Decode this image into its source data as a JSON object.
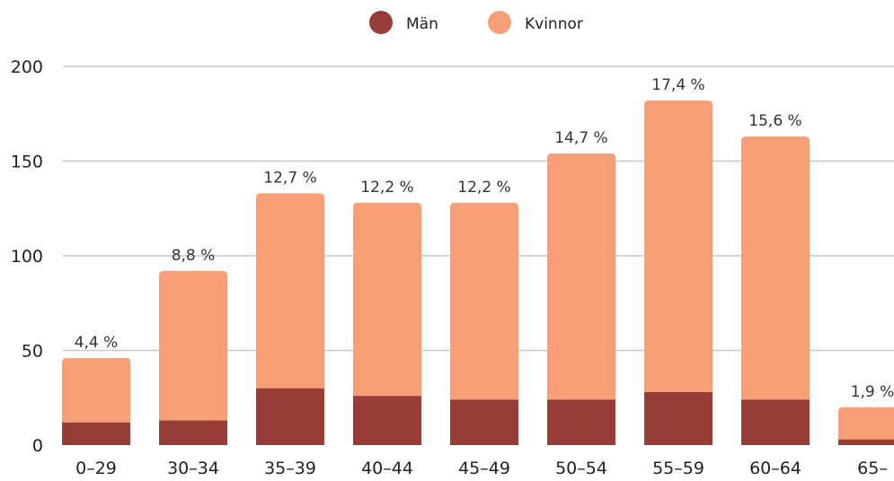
{
  "chart_data": {
    "type": "bar",
    "stacked": true,
    "categories": [
      "0–29",
      "30–34",
      "35–39",
      "40–44",
      "45–49",
      "50–54",
      "55–59",
      "60–64",
      "65–"
    ],
    "series": [
      {
        "name": "Män",
        "color": "#973c36",
        "values": [
          12,
          13,
          30,
          26,
          24,
          24,
          28,
          24,
          3
        ]
      },
      {
        "name": "Kvinnor",
        "color": "#f7a077",
        "values": [
          34,
          79,
          103,
          102,
          104,
          130,
          154,
          139,
          17
        ]
      }
    ],
    "data_labels": [
      "4,4 %",
      "8,8 %",
      "12,7 %",
      "12,2 %",
      "12,2 %",
      "14,7 %",
      "17,4 %",
      "15,6 %",
      "1,9 %"
    ],
    "yticks": [
      "0",
      "50",
      "100",
      "150",
      "200"
    ],
    "ylim": [
      0,
      200
    ],
    "grid": true,
    "legend": "top-center"
  }
}
